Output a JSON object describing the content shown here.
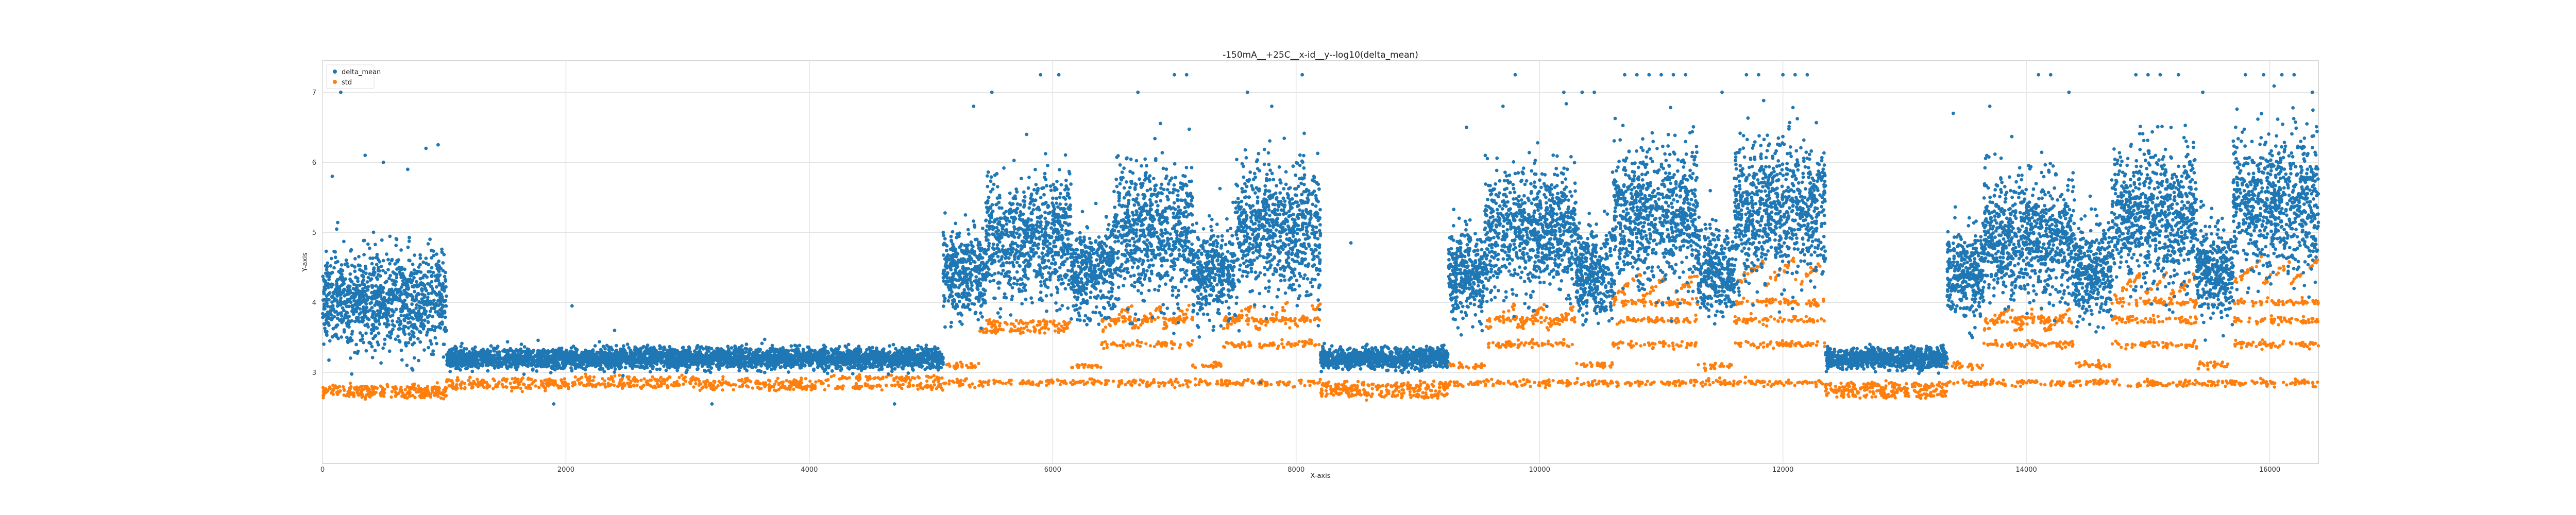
{
  "chart_data": {
    "type": "scatter",
    "title": "-150mA__+25C__x-id__y--log10(delta_mean)",
    "xlabel": "X-axis",
    "ylabel": "Y-axis",
    "xlim": [
      0,
      16400
    ],
    "ylim": [
      1.7,
      7.45
    ],
    "x_ticks": [
      0,
      2000,
      4000,
      6000,
      8000,
      10000,
      12000,
      14000,
      16000
    ],
    "y_ticks": [
      3,
      4,
      5,
      6,
      7
    ],
    "grid": true,
    "legend_position": "top-left",
    "series": [
      {
        "name": "delta_mean",
        "color": "#1f77b4",
        "segments": [
          {
            "x": [
              0,
              1020
            ],
            "center": 3.9,
            "spread": 0.55
          },
          {
            "x": [
              1020,
              5100
            ],
            "center": 3.2,
            "spread": 0.12
          },
          {
            "x": [
              5100,
              5450
            ],
            "center": 4.3,
            "spread": 0.5
          },
          {
            "x": [
              5450,
              6150
            ],
            "center": 4.8,
            "spread": 0.7
          },
          {
            "x": [
              6150,
              6500
            ],
            "center": 4.3,
            "spread": 0.5
          },
          {
            "x": [
              6500,
              7150
            ],
            "center": 4.9,
            "spread": 0.75
          },
          {
            "x": [
              7150,
              7500
            ],
            "center": 4.3,
            "spread": 0.5
          },
          {
            "x": [
              7500,
              8200
            ],
            "center": 4.9,
            "spread": 0.75
          },
          {
            "x": [
              8200,
              9250
            ],
            "center": 3.2,
            "spread": 0.12
          },
          {
            "x": [
              9250,
              9550
            ],
            "center": 4.3,
            "spread": 0.5
          },
          {
            "x": [
              9550,
              10300
            ],
            "center": 4.9,
            "spread": 0.7
          },
          {
            "x": [
              10300,
              10600
            ],
            "center": 4.3,
            "spread": 0.5
          },
          {
            "x": [
              10600,
              11300
            ],
            "center": 5.1,
            "spread": 0.8
          },
          {
            "x": [
              11300,
              11600
            ],
            "center": 4.3,
            "spread": 0.5
          },
          {
            "x": [
              11600,
              12350
            ],
            "center": 5.2,
            "spread": 0.8
          },
          {
            "x": [
              12350,
              13350
            ],
            "center": 3.2,
            "spread": 0.12
          },
          {
            "x": [
              13350,
              13650
            ],
            "center": 4.3,
            "spread": 0.5
          },
          {
            "x": [
              13650,
              14400
            ],
            "center": 4.8,
            "spread": 0.7
          },
          {
            "x": [
              14400,
              14700
            ],
            "center": 4.3,
            "spread": 0.5
          },
          {
            "x": [
              14700,
              15400
            ],
            "center": 5.1,
            "spread": 0.8
          },
          {
            "x": [
              15400,
              15700
            ],
            "center": 4.3,
            "spread": 0.5
          },
          {
            "x": [
              15700,
              16400
            ],
            "center": 5.3,
            "spread": 0.8
          }
        ],
        "outliers": [
          {
            "x": 80,
            "y": 5.8
          },
          {
            "x": 150,
            "y": 7.0
          },
          {
            "x": 350,
            "y": 6.1
          },
          {
            "x": 500,
            "y": 6.0
          },
          {
            "x": 700,
            "y": 5.9
          },
          {
            "x": 850,
            "y": 6.2
          },
          {
            "x": 950,
            "y": 6.25
          },
          {
            "x": 2050,
            "y": 3.95
          },
          {
            "x": 2400,
            "y": 3.6
          },
          {
            "x": 1900,
            "y": 2.55
          },
          {
            "x": 3200,
            "y": 2.55
          },
          {
            "x": 4700,
            "y": 2.55
          },
          {
            "x": 5350,
            "y": 6.8
          },
          {
            "x": 5500,
            "y": 7.0
          },
          {
            "x": 5900,
            "y": 7.25
          },
          {
            "x": 6050,
            "y": 7.25
          },
          {
            "x": 6700,
            "y": 7.0
          },
          {
            "x": 7000,
            "y": 7.25
          },
          {
            "x": 7100,
            "y": 7.25
          },
          {
            "x": 7600,
            "y": 7.0
          },
          {
            "x": 7800,
            "y": 6.8
          },
          {
            "x": 8050,
            "y": 7.25
          },
          {
            "x": 8450,
            "y": 4.85
          },
          {
            "x": 9400,
            "y": 6.5
          },
          {
            "x": 9700,
            "y": 6.8
          },
          {
            "x": 9800,
            "y": 7.25
          },
          {
            "x": 10200,
            "y": 7.0
          },
          {
            "x": 10350,
            "y": 7.0
          },
          {
            "x": 10450,
            "y": 7.0
          },
          {
            "x": 10700,
            "y": 7.25
          },
          {
            "x": 10800,
            "y": 7.25
          },
          {
            "x": 10900,
            "y": 7.25
          },
          {
            "x": 11000,
            "y": 7.25
          },
          {
            "x": 11100,
            "y": 7.25
          },
          {
            "x": 11200,
            "y": 7.25
          },
          {
            "x": 11500,
            "y": 7.0
          },
          {
            "x": 11700,
            "y": 7.25
          },
          {
            "x": 11800,
            "y": 7.25
          },
          {
            "x": 12000,
            "y": 7.25
          },
          {
            "x": 12100,
            "y": 7.25
          },
          {
            "x": 12200,
            "y": 7.25
          },
          {
            "x": 13400,
            "y": 6.7
          },
          {
            "x": 13700,
            "y": 6.8
          },
          {
            "x": 14100,
            "y": 7.25
          },
          {
            "x": 14200,
            "y": 7.25
          },
          {
            "x": 14350,
            "y": 7.0
          },
          {
            "x": 14900,
            "y": 7.25
          },
          {
            "x": 15000,
            "y": 7.25
          },
          {
            "x": 15100,
            "y": 7.25
          },
          {
            "x": 15250,
            "y": 7.25
          },
          {
            "x": 15450,
            "y": 7.0
          },
          {
            "x": 15800,
            "y": 7.25
          },
          {
            "x": 15950,
            "y": 7.25
          },
          {
            "x": 16100,
            "y": 7.25
          },
          {
            "x": 16200,
            "y": 7.25
          },
          {
            "x": 16350,
            "y": 7.0
          }
        ]
      },
      {
        "name": "std",
        "color": "#ff7f0e",
        "segments": [
          {
            "x": [
              0,
              1020
            ],
            "levels": [
              2.68,
              2.73,
              2.78
            ]
          },
          {
            "x": [
              1020,
              2050
            ],
            "levels": [
              2.8,
              2.87
            ]
          },
          {
            "x": [
              2050,
              3100
            ],
            "levels": [
              2.82,
              2.9
            ]
          },
          {
            "x": [
              3100,
              4150
            ],
            "levels": [
              2.79,
              2.86
            ]
          },
          {
            "x": [
              4150,
              5100
            ],
            "levels": [
              2.8,
              2.92
            ]
          },
          {
            "x": [
              5100,
              5400
            ],
            "levels": [
              2.85,
              3.1
            ]
          },
          {
            "x": [
              5400,
              6150
            ],
            "levels": [
              2.85,
              3.6,
              3.7
            ]
          },
          {
            "x": [
              6150,
              6400
            ],
            "levels": [
              2.85,
              3.1
            ]
          },
          {
            "x": [
              6400,
              7150
            ],
            "levels": [
              2.85,
              3.4,
              3.75,
              3.85
            ]
          },
          {
            "x": [
              7150,
              7400
            ],
            "levels": [
              2.85,
              3.1
            ]
          },
          {
            "x": [
              7400,
              8200
            ],
            "levels": [
              2.85,
              3.4,
              3.75,
              3.85
            ]
          },
          {
            "x": [
              8200,
              9250
            ],
            "levels": [
              2.68,
              2.75,
              2.82
            ]
          },
          {
            "x": [
              9250,
              9550
            ],
            "levels": [
              2.85,
              3.1
            ]
          },
          {
            "x": [
              9550,
              10300
            ],
            "levels": [
              2.85,
              3.4,
              3.75,
              3.85
            ]
          },
          {
            "x": [
              10300,
              10600
            ],
            "levels": [
              2.85,
              3.1
            ]
          },
          {
            "x": [
              10600,
              11300
            ],
            "levels": [
              2.85,
              3.4,
              3.75,
              4.0,
              4.3
            ]
          },
          {
            "x": [
              11300,
              11600
            ],
            "levels": [
              2.85,
              3.1
            ]
          },
          {
            "x": [
              11600,
              12350
            ],
            "levels": [
              2.85,
              3.4,
              3.75,
              4.0,
              4.5
            ]
          },
          {
            "x": [
              12350,
              13350
            ],
            "levels": [
              2.68,
              2.75,
              2.82
            ]
          },
          {
            "x": [
              13350,
              13650
            ],
            "levels": [
              2.85,
              3.1
            ]
          },
          {
            "x": [
              13650,
              14400
            ],
            "levels": [
              2.85,
              3.4,
              3.75,
              3.85
            ]
          },
          {
            "x": [
              14400,
              14700
            ],
            "levels": [
              2.85,
              3.1
            ]
          },
          {
            "x": [
              14700,
              15400
            ],
            "levels": [
              2.85,
              3.4,
              3.75,
              4.0,
              4.3
            ]
          },
          {
            "x": [
              15400,
              15700
            ],
            "levels": [
              2.85,
              3.1
            ]
          },
          {
            "x": [
              15700,
              16400
            ],
            "levels": [
              2.85,
              3.4,
              3.75,
              4.0,
              4.5
            ]
          }
        ]
      }
    ]
  }
}
